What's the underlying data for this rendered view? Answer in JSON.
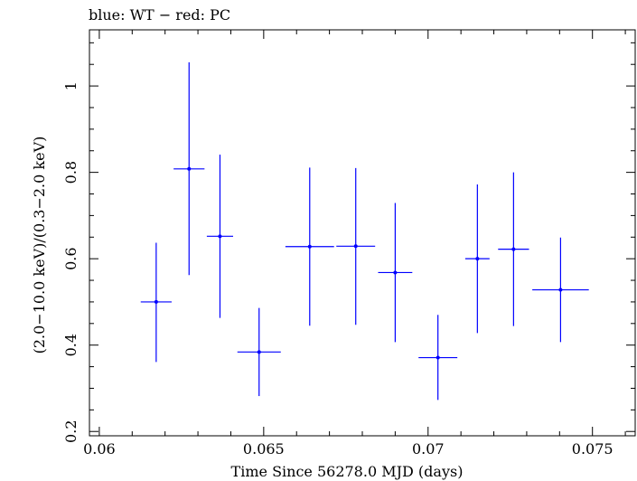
{
  "chart_data": {
    "type": "scatter",
    "title": "blue: WT − red: PC",
    "xlabel": "Time Since 56278.0 MJD (days)",
    "ylabel": "(2.0−10.0 keV)/(0.3−2.0 keV)",
    "xlim": [
      0.0597,
      0.0763
    ],
    "ylim": [
      0.19,
      1.13
    ],
    "xticks": [
      {
        "value": 0.06,
        "label": "0.06"
      },
      {
        "value": 0.065,
        "label": "0.065"
      },
      {
        "value": 0.07,
        "label": "0.07"
      },
      {
        "value": 0.075,
        "label": "0.075"
      }
    ],
    "yticks": [
      {
        "value": 0.2,
        "label": "0.2"
      },
      {
        "value": 0.4,
        "label": "0.4"
      },
      {
        "value": 0.6,
        "label": "0.6"
      },
      {
        "value": 0.8,
        "label": "0.8"
      },
      {
        "value": 1.0,
        "label": "1"
      }
    ],
    "x_minor_step": 0.001,
    "y_minor_step": 0.05,
    "grid": false,
    "legend": "none",
    "series": [
      {
        "color": "#0000ff",
        "points": [
          {
            "x": 0.06173,
            "xerr": 0.00047,
            "y": 0.5,
            "yerr_low": 0.139,
            "yerr_high": 0.137
          },
          {
            "x": 0.06273,
            "xerr": 0.00047,
            "y": 0.808,
            "yerr_low": 0.246,
            "yerr_high": 0.247
          },
          {
            "x": 0.06367,
            "xerr": 0.0004,
            "y": 0.652,
            "yerr_low": 0.189,
            "yerr_high": 0.189
          },
          {
            "x": 0.06486,
            "xerr": 0.00066,
            "y": 0.384,
            "yerr_low": 0.102,
            "yerr_high": 0.102
          },
          {
            "x": 0.0664,
            "xerr": 0.00074,
            "y": 0.628,
            "yerr_low": 0.183,
            "yerr_high": 0.183
          },
          {
            "x": 0.0678,
            "xerr": 0.00059,
            "y": 0.629,
            "yerr_low": 0.182,
            "yerr_high": 0.181
          },
          {
            "x": 0.069,
            "xerr": 0.00052,
            "y": 0.568,
            "yerr_low": 0.161,
            "yerr_high": 0.161
          },
          {
            "x": 0.0703,
            "xerr": 0.00059,
            "y": 0.371,
            "yerr_low": 0.098,
            "yerr_high": 0.099
          },
          {
            "x": 0.0715,
            "xerr": 0.00037,
            "y": 0.6,
            "yerr_low": 0.172,
            "yerr_high": 0.172
          },
          {
            "x": 0.0726,
            "xerr": 0.00047,
            "y": 0.622,
            "yerr_low": 0.178,
            "yerr_high": 0.178
          },
          {
            "x": 0.07403,
            "xerr": 0.00086,
            "y": 0.528,
            "yerr_low": 0.121,
            "yerr_high": 0.121
          }
        ]
      }
    ]
  }
}
